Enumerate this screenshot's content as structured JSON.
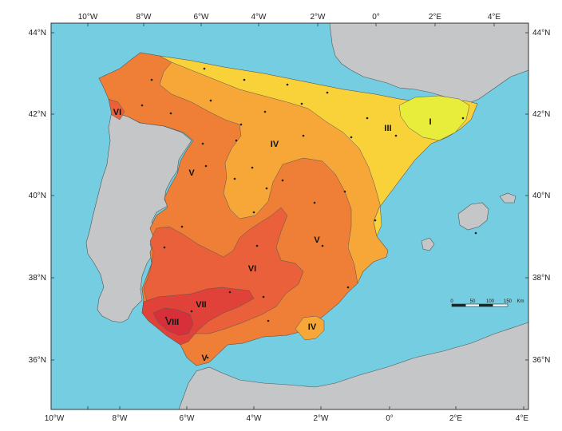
{
  "colors": {
    "sea": "#74cde0",
    "land_other": "#c4c6c7",
    "zone_I": "#e8ec3b",
    "zone_III": "#f9d23a",
    "zone_IV": "#f6a738",
    "zone_V": "#ef7f37",
    "zone_VI": "#e9603a",
    "zone_VII": "#e0423a",
    "zone_VIII": "#d8303a"
  },
  "axes": {
    "lon_labels": [
      "10°W",
      "8°W",
      "6°W",
      "4°W",
      "2°W",
      "0°",
      "2°E",
      "4°E"
    ],
    "lat_labels": [
      "44°N",
      "42°N",
      "40°N",
      "38°N",
      "36°N"
    ]
  },
  "zones": [
    {
      "label": "I"
    },
    {
      "label": "III"
    },
    {
      "label": "IV"
    },
    {
      "label": "IV"
    },
    {
      "label": "V"
    },
    {
      "label": "V"
    },
    {
      "label": "V"
    },
    {
      "label": "VI"
    },
    {
      "label": "VI"
    },
    {
      "label": "VII"
    },
    {
      "label": "VIII"
    }
  ],
  "scale_bar": {
    "ticks": [
      "0",
      "50",
      "100",
      "150"
    ],
    "unit": "Km"
  }
}
